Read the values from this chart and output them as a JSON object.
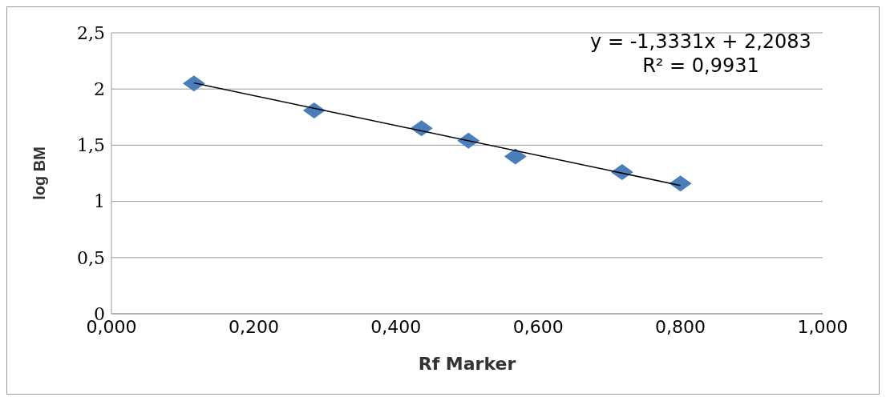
{
  "chart_data": {
    "type": "scatter",
    "xlabel": "Rf Marker",
    "ylabel": "log BM",
    "series": [
      {
        "color": "#4a7ebb",
        "marker": "diamond",
        "x": [
          0.116,
          0.285,
          0.436,
          0.502,
          0.568,
          0.718,
          0.8
        ],
        "values": [
          2.05,
          1.81,
          1.65,
          1.54,
          1.4,
          1.26,
          1.16
        ]
      },
      {
        "type": "line",
        "color": "#000000",
        "marker": "none",
        "x": [
          0.116,
          0.8
        ],
        "values": [
          2.054,
          1.142
        ]
      }
    ],
    "xlim": [
      0,
      1
    ],
    "xticks": [
      {
        "value": 0,
        "label": "0,000"
      },
      {
        "value": 0.2,
        "label": "0,200"
      },
      {
        "value": 0.4,
        "label": "0,400"
      },
      {
        "value": 0.6,
        "label": "0,600"
      },
      {
        "value": 0.8,
        "label": "0,800"
      },
      {
        "value": 1,
        "label": "1,000"
      }
    ],
    "ylim": [
      0,
      2.5
    ],
    "yticks": [
      0,
      {
        "value": 0.5,
        "label": "0,5"
      },
      1,
      {
        "value": 1.5,
        "label": "1,5"
      },
      2,
      {
        "value": 2.5,
        "label": "2,5"
      }
    ],
    "grid": "y",
    "legend": false,
    "annotations": [
      "y = -1,3331x + 2,2083",
      "R² = 0,9931"
    ]
  }
}
